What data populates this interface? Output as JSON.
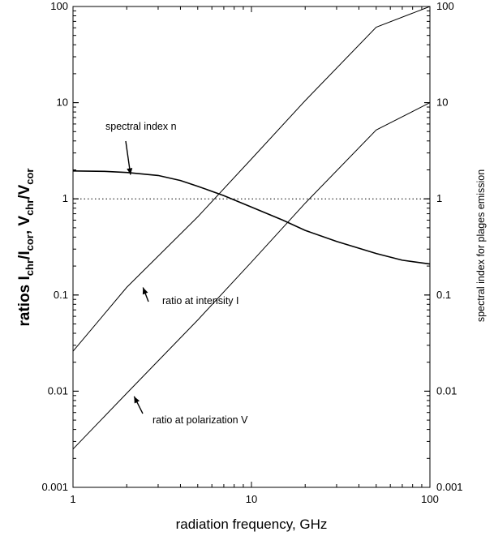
{
  "chart_data": {
    "type": "line",
    "xlabel": "radiation frequency, GHz",
    "ylabel": {
      "base": "ratios I",
      "s1": "chr",
      "mid1": "/I",
      "s2": "cor",
      "mid2": ", V",
      "s3": "chr",
      "mid3": "/V",
      "s4": "cor"
    },
    "y2label": "spectral index for plages emission",
    "xscale": "log",
    "yscale": "log",
    "xlim": [
      1,
      100
    ],
    "ylim": [
      0.001,
      100
    ],
    "xticks": [
      1,
      10,
      100
    ],
    "xtick_labels": [
      "1",
      "10",
      "100"
    ],
    "yticks": [
      0.001,
      0.01,
      0.1,
      1,
      10,
      100
    ],
    "ytick_labels": [
      "0.001",
      "0.01",
      "0.1",
      "1",
      "10",
      "100"
    ],
    "grid": false,
    "reference_line": {
      "y": 1,
      "style": "dotted"
    },
    "series": [
      {
        "name": "ratio at intensity I",
        "x": [
          1,
          2,
          5,
          10,
          20,
          50,
          100
        ],
        "y": [
          0.026,
          0.12,
          0.65,
          2.6,
          10.5,
          61,
          110
        ]
      },
      {
        "name": "ratio at polarization V",
        "x": [
          1,
          2,
          5,
          10,
          20,
          50,
          100
        ],
        "y": [
          0.0025,
          0.0095,
          0.055,
          0.22,
          0.9,
          5.2,
          10
        ]
      },
      {
        "name": "spectral index n",
        "x": [
          1,
          1.5,
          2,
          3,
          4,
          5,
          7,
          10,
          15,
          20,
          30,
          50,
          70,
          100
        ],
        "y": [
          1.95,
          1.93,
          1.88,
          1.75,
          1.55,
          1.35,
          1.08,
          0.82,
          0.6,
          0.47,
          0.36,
          0.27,
          0.23,
          0.21
        ]
      }
    ],
    "annotations": [
      {
        "text": "spectral index n",
        "x": 2.1,
        "y": 1.85
      },
      {
        "text": "ratio at intensity I",
        "x": 2.6,
        "y": 0.14
      },
      {
        "text": "ratio at polarization V",
        "x": 2.2,
        "y": 0.009
      }
    ]
  }
}
